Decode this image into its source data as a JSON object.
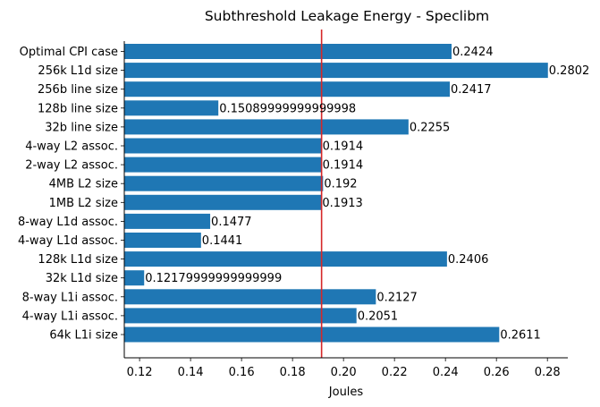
{
  "chart_data": {
    "type": "bar",
    "orientation": "horizontal",
    "title": "Subthreshold Leakage Energy - Speclibm",
    "xlabel": "Joules",
    "ylabel": "",
    "xlim": [
      0.114,
      0.288
    ],
    "xticks": [
      0.12,
      0.14,
      0.16,
      0.18,
      0.2,
      0.22,
      0.24,
      0.26,
      0.28
    ],
    "xtick_labels": [
      "0.12",
      "0.14",
      "0.16",
      "0.18",
      "0.20",
      "0.22",
      "0.24",
      "0.26",
      "0.28"
    ],
    "categories": [
      "Optimal CPI case",
      "256k L1d size",
      "256b line size",
      "128b line size",
      "32b line size",
      "4-way L2 assoc.",
      "2-way L2 assoc.",
      "4MB L2 size",
      "1MB L2 size",
      "8-way L1d assoc.",
      "4-way L1d assoc.",
      "128k L1d size",
      "32k L1d size",
      "8-way L1i assoc.",
      "4-way L1i assoc.",
      "64k L1i size"
    ],
    "values": [
      0.2424,
      0.2802,
      0.2417,
      0.15089999999999998,
      0.2255,
      0.1914,
      0.1914,
      0.192,
      0.1913,
      0.1477,
      0.1441,
      0.2406,
      0.12179999999999999,
      0.2127,
      0.2051,
      0.2611
    ],
    "value_labels": [
      "0.2424",
      "0.2802",
      "0.2417",
      "0.15089999999999998",
      "0.2255",
      "0.1914",
      "0.1914",
      "0.192",
      "0.1913",
      "0.1477",
      "0.1441",
      "0.2406",
      "0.12179999999999999",
      "0.2127",
      "0.2051",
      "0.2611"
    ],
    "reference_line": {
      "x": 0.1914,
      "color": "#d62728"
    },
    "bar_color": "#1f77b4",
    "grid": false,
    "legend": "none"
  }
}
